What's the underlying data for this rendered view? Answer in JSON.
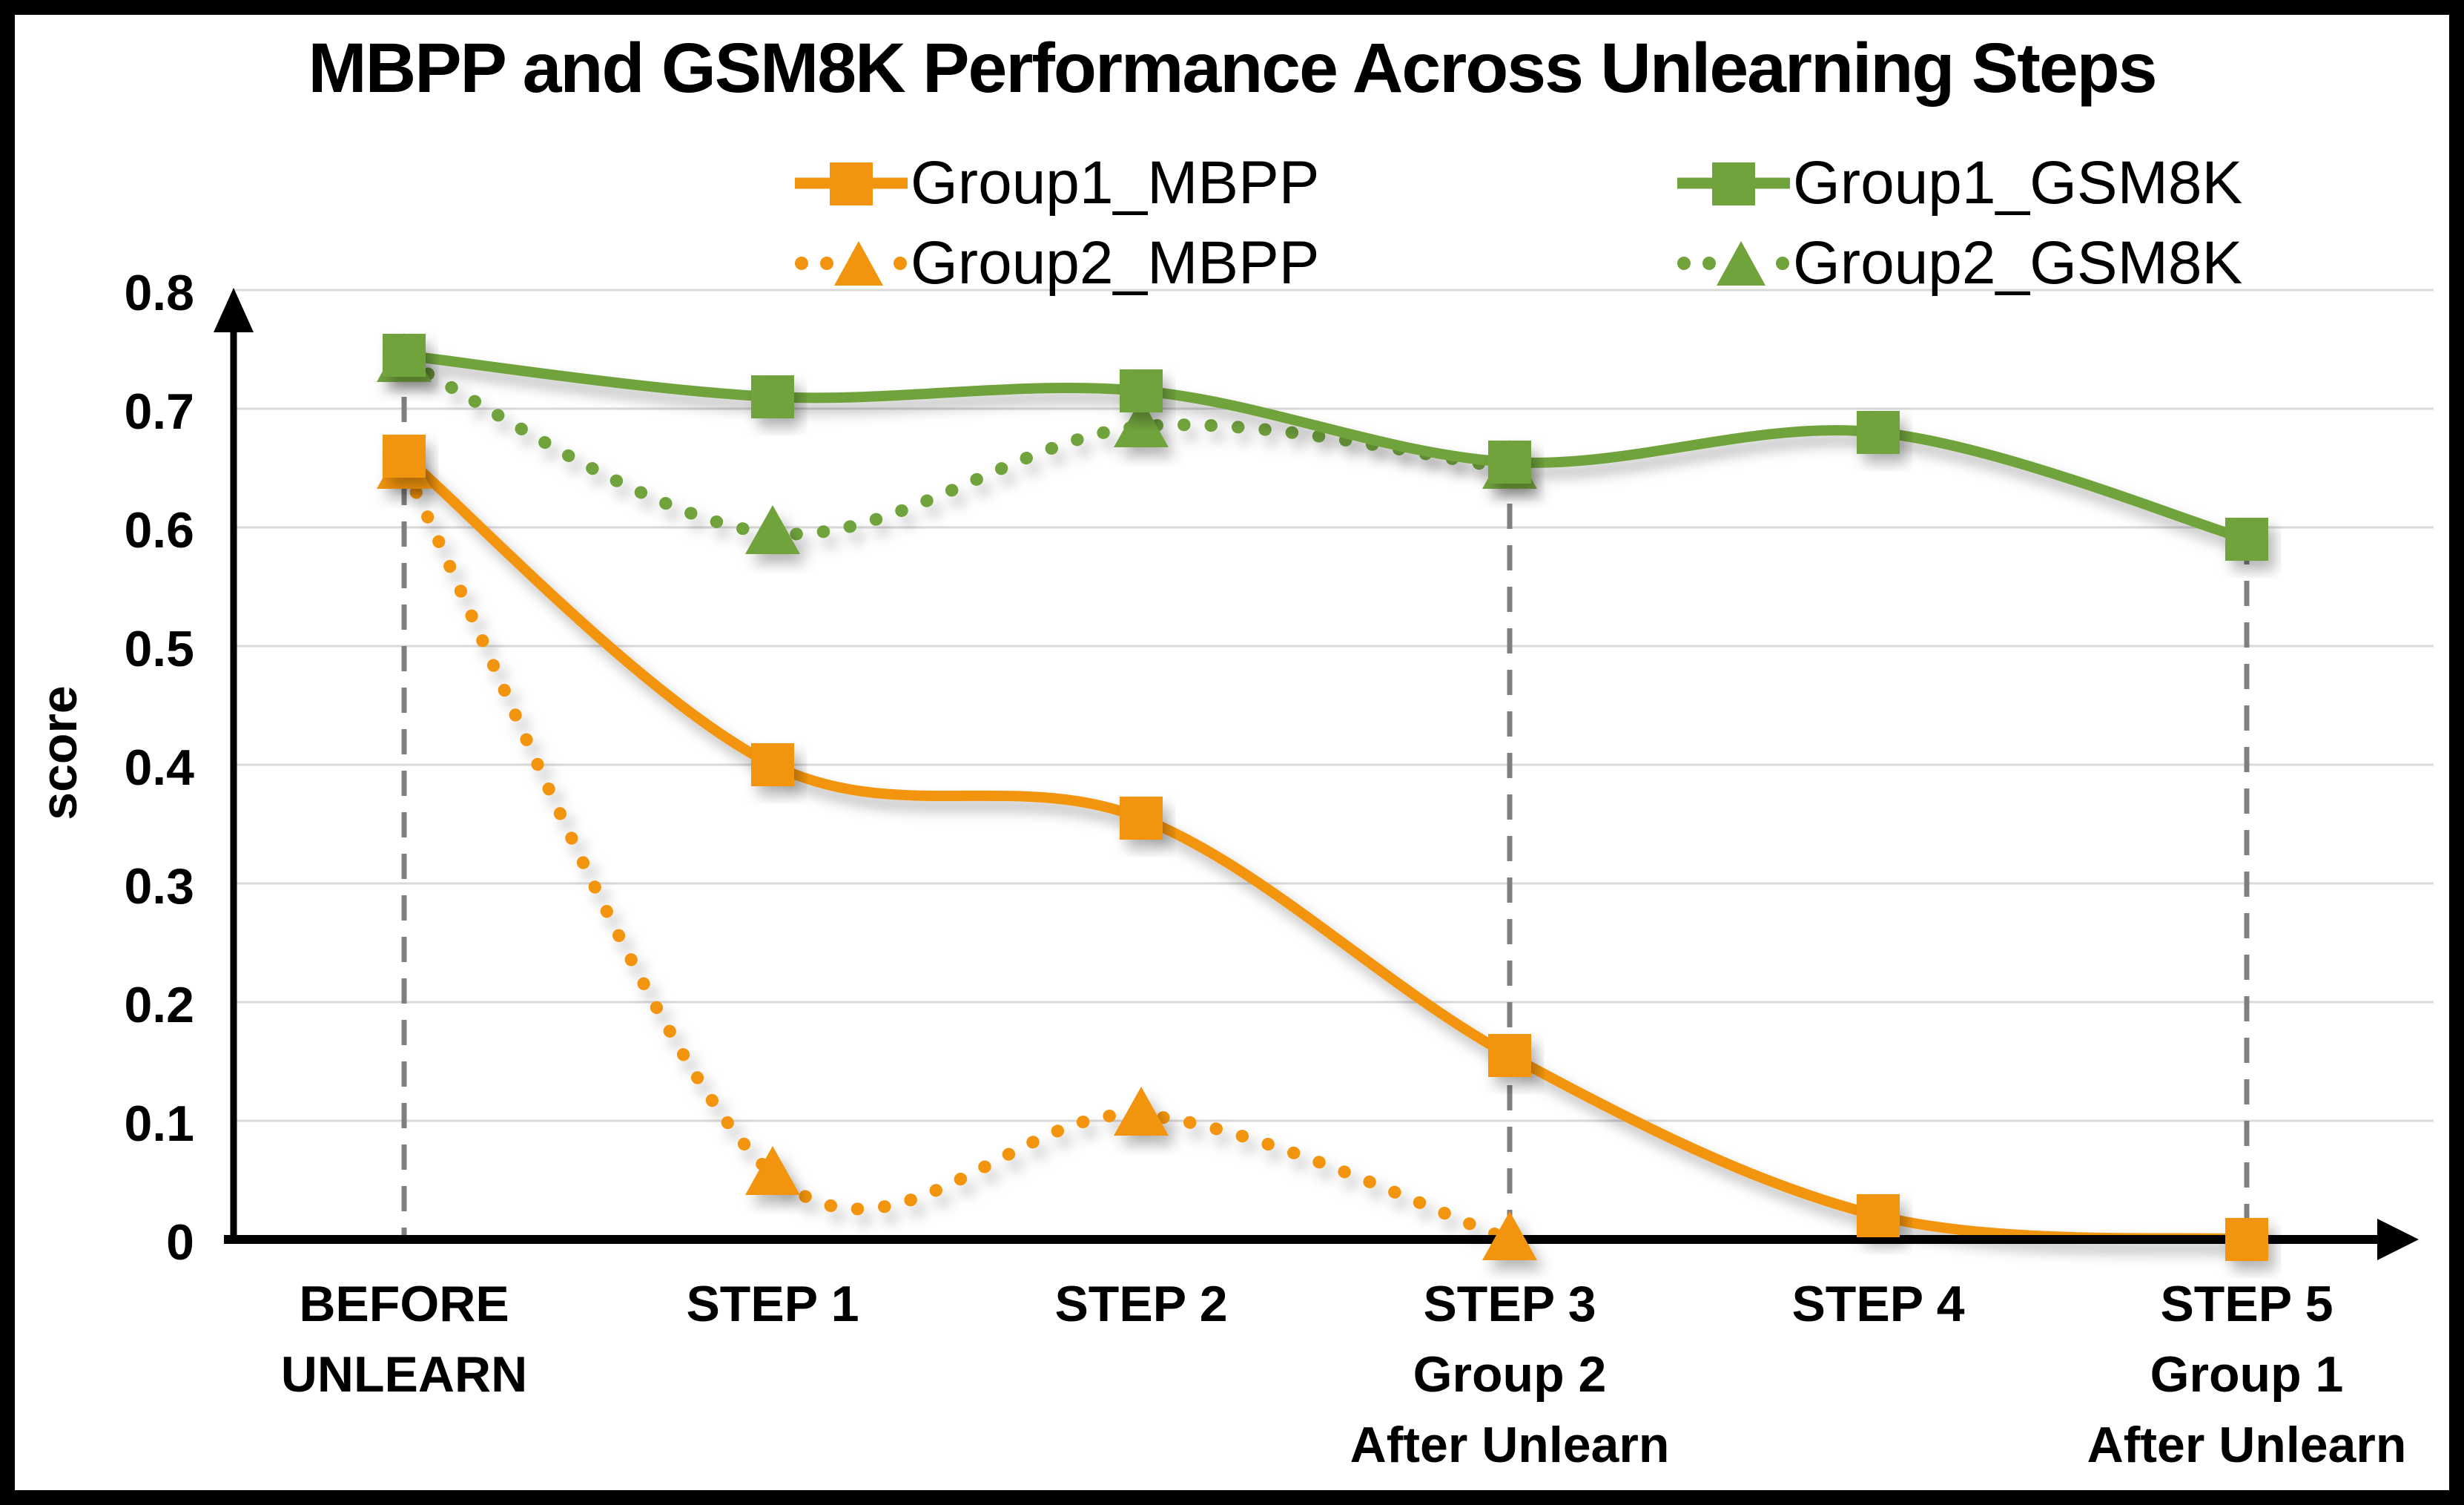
{
  "title": "MBPP and GSM8K Performance Across Unlearning Steps",
  "legend": {
    "items": [
      {
        "label": "Group1_MBPP",
        "series_index": 0
      },
      {
        "label": "Group1_GSM8K",
        "series_index": 2
      },
      {
        "label": "Group2_MBPP",
        "series_index": 1
      },
      {
        "label": "Group2_GSM8K",
        "series_index": 3
      }
    ]
  },
  "chart_data": {
    "type": "line",
    "title": "MBPP and GSM8K Performance Across Unlearning Steps",
    "xlabel": "",
    "ylabel": "score",
    "ylim": [
      0,
      0.8
    ],
    "y_ticks": [
      0,
      0.1,
      0.2,
      0.3,
      0.4,
      0.5,
      0.6,
      0.7,
      0.8
    ],
    "grid": "horizontal",
    "legend_position": "top",
    "categories": [
      {
        "label": "BEFORE UNLEARN",
        "lines": [
          "BEFORE",
          "UNLEARN"
        ]
      },
      {
        "label": "STEP 1",
        "lines": [
          "STEP 1"
        ]
      },
      {
        "label": "STEP 2",
        "lines": [
          "STEP 2"
        ]
      },
      {
        "label": "STEP 3",
        "lines": [
          "STEP 3",
          "Group 2",
          "After Unlearn"
        ]
      },
      {
        "label": "STEP 4",
        "lines": [
          "STEP 4"
        ]
      },
      {
        "label": "STEP 5",
        "lines": [
          "STEP 5",
          "Group 1",
          "After Unlearn"
        ]
      }
    ],
    "series": [
      {
        "name": "Group1_MBPP",
        "color": "#F2940D",
        "line_style": "solid",
        "marker": "square",
        "values": [
          0.66,
          0.4,
          0.355,
          0.155,
          0.02,
          0.0
        ]
      },
      {
        "name": "Group2_MBPP",
        "color": "#F2940D",
        "line_style": "dotted",
        "marker": "triangle",
        "values": [
          0.65,
          0.055,
          0.105,
          0.0,
          null,
          null
        ]
      },
      {
        "name": "Group1_GSM8K",
        "color": "#71A33C",
        "line_style": "solid",
        "marker": "square",
        "values": [
          0.745,
          0.71,
          0.715,
          0.655,
          0.68,
          0.59
        ]
      },
      {
        "name": "Group2_GSM8K",
        "color": "#71A33C",
        "line_style": "dotted",
        "marker": "triangle",
        "values": [
          0.74,
          0.595,
          0.685,
          0.65,
          null,
          null
        ]
      }
    ],
    "guides": {
      "color": "#7F7F7F",
      "at_categories": [
        0,
        3,
        5
      ]
    },
    "axis_color": "#000000",
    "gridline_color": "#D9D9D9",
    "background": "#FFFFFF",
    "frame_color": "#000000"
  }
}
